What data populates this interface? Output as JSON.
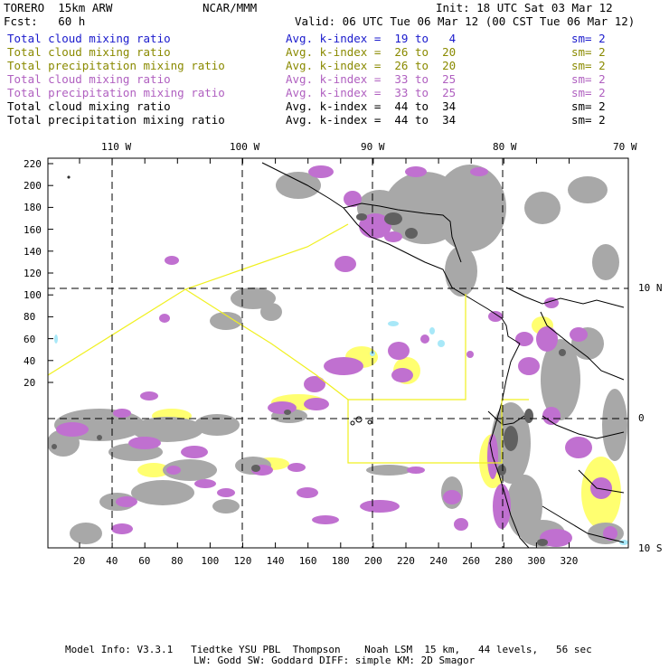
{
  "header": {
    "model": "TORERO  15km ARW",
    "org": "NCAR/MMM",
    "init": "Init: 18 UTC Sat 03 Mar 12",
    "fcst": "Fcst:   60 h",
    "valid": "Valid: 06 UTC Tue 06 Mar 12 (00 CST Tue 06 Mar 12)"
  },
  "legend": [
    {
      "name": "Total cloud mixing ratio",
      "kidx": "Avg. k-index =  19 to   4",
      "sm": "sm= 2",
      "color": "#1a1acc"
    },
    {
      "name": "Total cloud mixing ratio",
      "kidx": "Avg. k-index =  26 to  20",
      "sm": "sm= 2",
      "color": "#8a8a00"
    },
    {
      "name": "Total precipitation mixing ratio",
      "kidx": "Avg. k-index =  26 to  20",
      "sm": "sm= 2",
      "color": "#8a8a00"
    },
    {
      "name": "Total cloud mixing ratio",
      "kidx": "Avg. k-index =  33 to  25",
      "sm": "sm= 2",
      "color": "#b060c0"
    },
    {
      "name": "Total precipitation mixing ratio",
      "kidx": "Avg. k-index =  33 to  25",
      "sm": "sm= 2",
      "color": "#b060c0"
    },
    {
      "name": "Total cloud mixing ratio",
      "kidx": "Avg. k-index =  44 to  34",
      "sm": "sm= 2",
      "color": "#000000"
    },
    {
      "name": "Total precipitation mixing ratio",
      "kidx": "Avg. k-index =  44 to  34",
      "sm": "sm= 2",
      "color": "#000000"
    }
  ],
  "axes": {
    "lon_labels": [
      "110 W",
      "100 W",
      "90 W",
      "80 W",
      "70 W"
    ],
    "lat_labels": [
      "10 N",
      "0",
      "10 S"
    ],
    "y_ticks": [
      "220",
      "200",
      "180",
      "160",
      "140",
      "120",
      "100",
      "80",
      "60",
      "40",
      "20"
    ],
    "x_ticks": [
      "20",
      "40",
      "60",
      "80",
      "100",
      "120",
      "140",
      "160",
      "180",
      "200",
      "220",
      "240",
      "260",
      "280",
      "300",
      "320"
    ]
  },
  "footer": {
    "line1": "Model Info: V3.3.1   Tiedtke YSU PBL  Thompson    Noah LSM  15 km,   44 levels,   56 sec",
    "line2": "LW: Godd SW: Goddard DIFF: simple KM: 2D Smagor"
  },
  "colors": {
    "gray": "#a8a8a8",
    "darkgray": "#606060",
    "purple": "#c070d0",
    "yellow": "#ffff70",
    "cyan": "#a8e8f8",
    "line_yellow": "#f0f020"
  }
}
